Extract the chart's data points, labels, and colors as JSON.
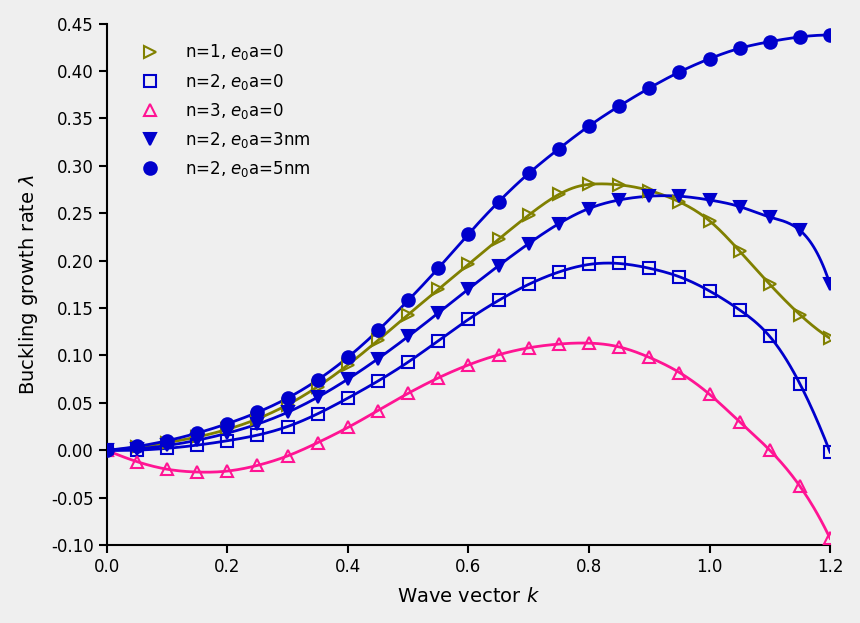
{
  "xlabel": "Wave vector $k$",
  "ylabel": "Buckling growth rate $\\lambda$",
  "xlim": [
    0.0,
    1.2
  ],
  "ylim": [
    -0.1,
    0.45
  ],
  "xticks": [
    0.0,
    0.2,
    0.4,
    0.6,
    0.8,
    1.0,
    1.2
  ],
  "yticks": [
    -0.1,
    -0.05,
    0.0,
    0.05,
    0.1,
    0.15,
    0.2,
    0.25,
    0.3,
    0.35,
    0.4,
    0.45
  ],
  "fig_color": "#efefef",
  "plot_color": "#efefef",
  "series": [
    {
      "label": "n=1, $e_0$a=0",
      "color": "#808000",
      "marker": ">",
      "markersize": 9,
      "linewidth": 2.0,
      "markerfacecolor": "none",
      "markeredgewidth": 1.5
    },
    {
      "label": "n=2, $e_0$a=0",
      "color": "#0000cc",
      "marker": "s",
      "markersize": 9,
      "linewidth": 2.0,
      "markerfacecolor": "none",
      "markeredgewidth": 1.5
    },
    {
      "label": "n=3, $e_0$a=0",
      "color": "#ff1493",
      "marker": "^",
      "markersize": 9,
      "linewidth": 2.0,
      "markerfacecolor": "none",
      "markeredgewidth": 1.5
    },
    {
      "label": "n=2, $e_0$a=3nm",
      "color": "#0000cc",
      "marker": "v",
      "markersize": 9,
      "linewidth": 2.0,
      "markerfacecolor": "#0000cc",
      "markeredgewidth": 1.5
    },
    {
      "label": "n=2, $e_0$a=5nm",
      "color": "#0000cc",
      "marker": "o",
      "markersize": 9,
      "linewidth": 2.0,
      "markerfacecolor": "#0000cc",
      "markeredgewidth": 1.5
    }
  ],
  "pts1": [
    [
      0.0,
      0.0
    ],
    [
      0.05,
      0.003
    ],
    [
      0.1,
      0.008
    ],
    [
      0.15,
      0.014
    ],
    [
      0.2,
      0.022
    ],
    [
      0.3,
      0.048
    ],
    [
      0.4,
      0.09
    ],
    [
      0.5,
      0.143
    ],
    [
      0.6,
      0.196
    ],
    [
      0.7,
      0.248
    ],
    [
      0.78,
      0.278
    ],
    [
      0.82,
      0.281
    ],
    [
      0.85,
      0.28
    ],
    [
      0.9,
      0.274
    ],
    [
      0.95,
      0.262
    ],
    [
      1.0,
      0.242
    ],
    [
      1.05,
      0.21
    ],
    [
      1.1,
      0.175
    ],
    [
      1.15,
      0.143
    ],
    [
      1.2,
      0.118
    ]
  ],
  "pts2": [
    [
      0.0,
      0.0
    ],
    [
      0.1,
      0.002
    ],
    [
      0.2,
      0.01
    ],
    [
      0.3,
      0.025
    ],
    [
      0.4,
      0.055
    ],
    [
      0.5,
      0.093
    ],
    [
      0.6,
      0.138
    ],
    [
      0.65,
      0.158
    ],
    [
      0.7,
      0.175
    ],
    [
      0.75,
      0.188
    ],
    [
      0.8,
      0.196
    ],
    [
      0.85,
      0.197
    ],
    [
      0.9,
      0.192
    ],
    [
      0.95,
      0.183
    ],
    [
      1.0,
      0.168
    ],
    [
      1.05,
      0.148
    ],
    [
      1.1,
      0.12
    ],
    [
      1.15,
      0.07
    ],
    [
      1.2,
      -0.002
    ]
  ],
  "pts3": [
    [
      0.0,
      0.0
    ],
    [
      0.05,
      -0.012
    ],
    [
      0.1,
      -0.02
    ],
    [
      0.15,
      -0.023
    ],
    [
      0.2,
      -0.022
    ],
    [
      0.25,
      -0.016
    ],
    [
      0.3,
      -0.006
    ],
    [
      0.35,
      0.008
    ],
    [
      0.4,
      0.024
    ],
    [
      0.5,
      0.06
    ],
    [
      0.6,
      0.09
    ],
    [
      0.7,
      0.108
    ],
    [
      0.75,
      0.112
    ],
    [
      0.8,
      0.113
    ],
    [
      0.85,
      0.109
    ],
    [
      0.9,
      0.098
    ],
    [
      0.95,
      0.082
    ],
    [
      1.0,
      0.059
    ],
    [
      1.05,
      0.03
    ],
    [
      1.1,
      0.0
    ],
    [
      1.15,
      -0.038
    ],
    [
      1.2,
      -0.093
    ]
  ],
  "pts4": [
    [
      0.0,
      0.0
    ],
    [
      0.1,
      0.005
    ],
    [
      0.2,
      0.018
    ],
    [
      0.3,
      0.04
    ],
    [
      0.4,
      0.075
    ],
    [
      0.5,
      0.12
    ],
    [
      0.6,
      0.17
    ],
    [
      0.7,
      0.218
    ],
    [
      0.8,
      0.255
    ],
    [
      0.85,
      0.264
    ],
    [
      0.9,
      0.268
    ],
    [
      0.95,
      0.268
    ],
    [
      1.0,
      0.264
    ],
    [
      1.05,
      0.257
    ],
    [
      1.1,
      0.246
    ],
    [
      1.15,
      0.232
    ],
    [
      1.2,
      0.175
    ]
  ],
  "pts5": [
    [
      0.0,
      0.0
    ],
    [
      0.1,
      0.01
    ],
    [
      0.2,
      0.028
    ],
    [
      0.3,
      0.055
    ],
    [
      0.4,
      0.098
    ],
    [
      0.5,
      0.158
    ],
    [
      0.55,
      0.192
    ],
    [
      0.6,
      0.228
    ],
    [
      0.65,
      0.262
    ],
    [
      0.7,
      0.292
    ],
    [
      0.75,
      0.318
    ],
    [
      0.8,
      0.342
    ],
    [
      0.85,
      0.363
    ],
    [
      0.9,
      0.382
    ],
    [
      0.95,
      0.399
    ],
    [
      1.0,
      0.413
    ],
    [
      1.05,
      0.424
    ],
    [
      1.1,
      0.431
    ],
    [
      1.15,
      0.436
    ],
    [
      1.2,
      0.438
    ]
  ]
}
